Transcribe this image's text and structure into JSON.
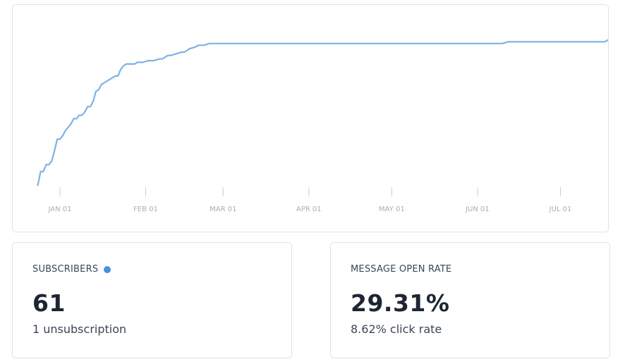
{
  "chart_data": {
    "type": "line",
    "x_ticks": [
      "JAN 01",
      "FEB 01",
      "MAR 01",
      "APR 01",
      "MAY 01",
      "JUN 01",
      "JUL 01"
    ],
    "x_range": [
      "Dec 24",
      "Jul 15"
    ],
    "series": [
      {
        "color": "#7fb2e5",
        "x": [
          -8,
          -7,
          -6,
          -5,
          -4,
          -3,
          -2,
          -1,
          0,
          1,
          2,
          3,
          4,
          5,
          6,
          7,
          8,
          9,
          10,
          11,
          12,
          13,
          14,
          15,
          16,
          17,
          18,
          19,
          20,
          21,
          22,
          23,
          24,
          25,
          26,
          27,
          28,
          29,
          30,
          32,
          34,
          36,
          37,
          39,
          40,
          42,
          44,
          45,
          47,
          49,
          50,
          52,
          54,
          55,
          57,
          58,
          160,
          162,
          197,
          198
        ],
        "y": [
          0,
          8,
          8,
          12,
          12,
          14,
          20,
          27,
          27,
          29,
          32,
          34,
          36,
          39,
          39,
          41,
          41,
          43,
          46,
          46,
          49,
          55,
          56,
          59,
          60,
          61,
          62,
          63,
          64,
          64,
          68,
          70,
          71,
          71,
          71,
          71,
          72,
          72,
          72,
          73,
          73,
          74,
          74,
          76,
          76,
          77,
          78,
          78,
          80,
          81,
          82,
          82,
          83,
          83,
          83,
          83,
          83,
          84,
          84,
          85
        ]
      }
    ],
    "ylim": [
      0,
      85
    ],
    "grid": false,
    "legend": "none"
  },
  "subscribers": {
    "title": "SUBSCRIBERS",
    "value": "61",
    "sub": "1 unsubscription",
    "dot_color": "#4a90e2"
  },
  "open_rate": {
    "title": "MESSAGE OPEN RATE",
    "value": "29.31%",
    "sub": "8.62% click rate"
  }
}
